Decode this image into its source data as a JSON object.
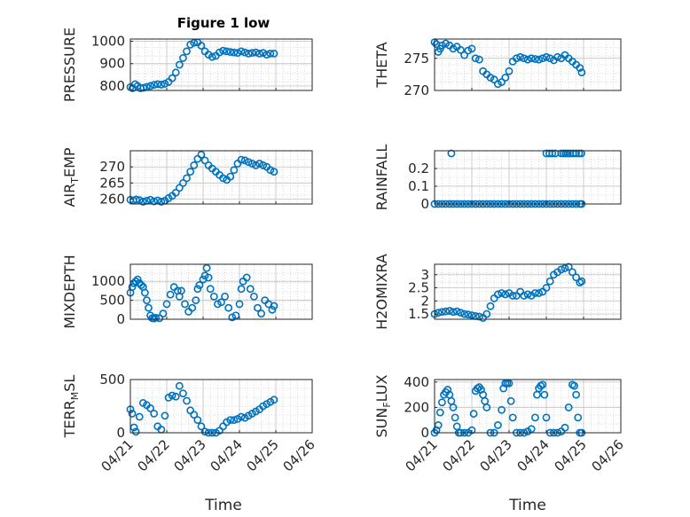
{
  "figure": {
    "title": "Figure 1 low",
    "marker_color": "#0072BD"
  },
  "chart_data": [
    {
      "type": "scatter",
      "name": "pressure",
      "ylabel": "PRESSURE",
      "xlim": [
        0,
        5
      ],
      "ylim": [
        780,
        1010
      ],
      "yticks": [
        800,
        900,
        1000
      ],
      "xticks": [
        "04/21",
        "04/22",
        "04/23",
        "04/24",
        "04/25",
        "04/26"
      ],
      "grid": true,
      "x": [
        0.0,
        0.06,
        0.13,
        0.2,
        0.28,
        0.36,
        0.45,
        0.55,
        0.65,
        0.75,
        0.85,
        0.95,
        1.05,
        1.15,
        1.25,
        1.35,
        1.45,
        1.55,
        1.65,
        1.75,
        1.85,
        1.95,
        2.05,
        2.15,
        2.25,
        2.35,
        2.45,
        2.55,
        2.65,
        2.75,
        2.85,
        2.95,
        3.05,
        3.15,
        3.25,
        3.35,
        3.45,
        3.55,
        3.65,
        3.75,
        3.85,
        3.95
      ],
      "y": [
        795,
        790,
        808,
        800,
        790,
        792,
        796,
        800,
        805,
        808,
        806,
        810,
        818,
        835,
        860,
        895,
        925,
        955,
        985,
        993,
        995,
        980,
        955,
        940,
        930,
        935,
        950,
        958,
        955,
        952,
        950,
        948,
        955,
        950,
        945,
        948,
        950,
        945,
        948,
        940,
        945,
        945
      ]
    },
    {
      "type": "scatter",
      "name": "theta",
      "ylabel": "THETA",
      "xlim": [
        0,
        5
      ],
      "ylim": [
        270,
        278
      ],
      "yticks": [
        270,
        275
      ],
      "xticks": [
        "04/21",
        "04/22",
        "04/23",
        "04/24",
        "04/25",
        "04/26"
      ],
      "grid": true,
      "x": [
        0.0,
        0.05,
        0.1,
        0.15,
        0.2,
        0.3,
        0.4,
        0.5,
        0.6,
        0.7,
        0.8,
        0.9,
        1.0,
        1.1,
        1.2,
        1.3,
        1.4,
        1.5,
        1.6,
        1.7,
        1.8,
        1.9,
        2.0,
        2.1,
        2.2,
        2.3,
        2.4,
        2.5,
        2.6,
        2.7,
        2.8,
        2.9,
        3.0,
        3.1,
        3.2,
        3.3,
        3.4,
        3.5,
        3.6,
        3.7,
        3.8,
        3.9,
        3.95
      ],
      "y": [
        277.5,
        277.2,
        276,
        276.5,
        277,
        277.3,
        277,
        276.5,
        276.8,
        276.3,
        275.5,
        276.2,
        276.5,
        275,
        274.8,
        273,
        272.5,
        272,
        271.7,
        271,
        271.3,
        272,
        273,
        274.5,
        275,
        275.2,
        275,
        274.8,
        275,
        274.9,
        274.8,
        275,
        275.2,
        275,
        274.7,
        275.2,
        275,
        275.5,
        275,
        274.5,
        274,
        273.5,
        272.8
      ]
    },
    {
      "type": "scatter",
      "name": "air_temp",
      "ylabel": "AIR_TEMP",
      "xlim": [
        0,
        5
      ],
      "ylim": [
        258.5,
        275
      ],
      "yticks": [
        260,
        265,
        270
      ],
      "xticks": [
        "04/21",
        "04/22",
        "04/23",
        "04/24",
        "04/25",
        "04/26"
      ],
      "grid": true,
      "x": [
        0.0,
        0.08,
        0.16,
        0.25,
        0.35,
        0.45,
        0.55,
        0.65,
        0.75,
        0.85,
        0.95,
        1.05,
        1.15,
        1.25,
        1.35,
        1.45,
        1.55,
        1.65,
        1.75,
        1.85,
        1.95,
        2.05,
        2.15,
        2.25,
        2.35,
        2.45,
        2.55,
        2.65,
        2.75,
        2.85,
        2.95,
        3.05,
        3.15,
        3.25,
        3.35,
        3.45,
        3.55,
        3.65,
        3.75,
        3.85,
        3.95
      ],
      "y": [
        259.8,
        259.6,
        259.9,
        259.7,
        259.2,
        259.5,
        259.8,
        259.3,
        259.6,
        259.2,
        259.5,
        260.3,
        261,
        262,
        263.5,
        265,
        266.5,
        268.5,
        270.5,
        272.5,
        273.8,
        272,
        270.5,
        269.5,
        268.5,
        267.5,
        266.5,
        266,
        267,
        269,
        271,
        272.2,
        272,
        271.5,
        271,
        270.5,
        271,
        270.5,
        270,
        269,
        268.5
      ]
    },
    {
      "type": "scatter",
      "name": "rainfall",
      "ylabel": "RAINFALL",
      "xlim": [
        0,
        5
      ],
      "ylim": [
        0,
        0.3
      ],
      "yticks": [
        0,
        0.1,
        0.2
      ],
      "xticks": [
        "04/21",
        "04/22",
        "04/23",
        "04/24",
        "04/25",
        "04/26"
      ],
      "grid": true,
      "x": [
        0.0,
        0.1,
        0.2,
        0.3,
        0.4,
        0.5,
        0.6,
        0.7,
        0.8,
        0.9,
        1.0,
        1.1,
        1.2,
        1.3,
        1.4,
        1.5,
        1.6,
        1.7,
        1.8,
        1.9,
        2.0,
        2.1,
        2.2,
        2.3,
        2.4,
        2.5,
        2.6,
        2.7,
        2.8,
        2.9,
        3.0,
        3.1,
        3.2,
        3.3,
        3.4,
        3.5,
        3.6,
        3.7,
        3.8,
        3.9,
        3.95,
        0.45,
        3.0,
        3.08,
        3.16,
        3.24,
        3.4,
        3.46,
        3.52,
        3.58,
        3.64,
        3.72,
        3.8,
        3.88,
        3.94
      ],
      "y": [
        0,
        0,
        0,
        0,
        0,
        0,
        0,
        0,
        0,
        0,
        0,
        0,
        0,
        0,
        0,
        0,
        0,
        0,
        0,
        0,
        0,
        0,
        0,
        0,
        0,
        0,
        0,
        0,
        0,
        0,
        0,
        0,
        0,
        0,
        0,
        0,
        0,
        0,
        0,
        0,
        0,
        0.285,
        0.285,
        0.285,
        0.285,
        0.285,
        0.285,
        0.285,
        0.285,
        0.285,
        0.285,
        0.285,
        0.285,
        0.285,
        0.285
      ]
    },
    {
      "type": "scatter",
      "name": "mixdepth",
      "ylabel": "MIXDEPTH",
      "xlim": [
        0,
        5
      ],
      "ylim": [
        0,
        1450
      ],
      "yticks": [
        0,
        500,
        1000
      ],
      "xticks": [
        "04/21",
        "04/22",
        "04/23",
        "04/24",
        "04/25",
        "04/26"
      ],
      "grid": true,
      "x": [
        0.0,
        0.05,
        0.1,
        0.15,
        0.2,
        0.25,
        0.3,
        0.35,
        0.4,
        0.45,
        0.5,
        0.55,
        0.6,
        0.65,
        0.7,
        0.8,
        0.9,
        1.0,
        1.1,
        1.2,
        1.3,
        1.35,
        1.4,
        1.5,
        1.6,
        1.7,
        1.8,
        1.85,
        1.9,
        2.0,
        2.05,
        2.1,
        2.15,
        2.2,
        2.3,
        2.4,
        2.5,
        2.6,
        2.7,
        2.8,
        2.9,
        3.0,
        3.05,
        3.1,
        3.2,
        3.3,
        3.4,
        3.5,
        3.6,
        3.7,
        3.8,
        3.9,
        3.95
      ],
      "y": [
        700,
        850,
        950,
        1000,
        1050,
        950,
        900,
        850,
        700,
        500,
        300,
        100,
        30,
        20,
        40,
        30,
        150,
        400,
        650,
        850,
        750,
        600,
        750,
        400,
        200,
        300,
        500,
        800,
        900,
        1050,
        1150,
        1350,
        1100,
        800,
        600,
        400,
        450,
        600,
        300,
        50,
        100,
        400,
        800,
        1000,
        1100,
        800,
        600,
        300,
        150,
        500,
        400,
        250,
        350
      ]
    },
    {
      "type": "scatter",
      "name": "h2omixra",
      "ylabel": "H2OMIXRA",
      "xlim": [
        0,
        5
      ],
      "ylim": [
        1.3,
        3.4
      ],
      "yticks": [
        1.5,
        2,
        2.5,
        3
      ],
      "xticks": [
        "04/21",
        "04/22",
        "04/23",
        "04/24",
        "04/25",
        "04/26"
      ],
      "grid": true,
      "x": [
        0.0,
        0.1,
        0.2,
        0.3,
        0.4,
        0.5,
        0.6,
        0.7,
        0.8,
        0.9,
        1.0,
        1.1,
        1.2,
        1.3,
        1.4,
        1.5,
        1.6,
        1.7,
        1.8,
        1.9,
        2.0,
        2.1,
        2.2,
        2.3,
        2.4,
        2.5,
        2.6,
        2.7,
        2.8,
        2.9,
        3.0,
        3.1,
        3.2,
        3.3,
        3.4,
        3.5,
        3.6,
        3.7,
        3.8,
        3.9,
        3.95
      ],
      "y": [
        1.5,
        1.55,
        1.58,
        1.6,
        1.62,
        1.58,
        1.6,
        1.55,
        1.5,
        1.48,
        1.45,
        1.42,
        1.4,
        1.35,
        1.5,
        1.8,
        2.1,
        2.25,
        2.3,
        2.25,
        2.3,
        2.2,
        2.2,
        2.35,
        2.2,
        2.25,
        2.2,
        2.3,
        2.3,
        2.35,
        2.5,
        2.75,
        3.0,
        3.1,
        3.2,
        3.25,
        3.3,
        3.1,
        2.9,
        2.7,
        2.75
      ]
    },
    {
      "type": "scatter",
      "name": "terr_msl",
      "ylabel": "TERR_MSL",
      "xlim": [
        0,
        5
      ],
      "ylim": [
        0,
        500
      ],
      "yticks": [
        0,
        500
      ],
      "xticks": [
        "04/21",
        "04/22",
        "04/23",
        "04/24",
        "04/25",
        "04/26"
      ],
      "grid": true,
      "x": [
        0.0,
        0.05,
        0.1,
        0.15,
        0.25,
        0.35,
        0.45,
        0.55,
        0.65,
        0.75,
        0.85,
        0.95,
        1.05,
        1.15,
        1.25,
        1.35,
        1.45,
        1.55,
        1.65,
        1.75,
        1.85,
        1.95,
        2.05,
        2.15,
        2.25,
        2.35,
        2.45,
        2.55,
        2.65,
        2.75,
        2.85,
        2.95,
        3.05,
        3.15,
        3.25,
        3.35,
        3.45,
        3.55,
        3.65,
        3.75,
        3.85,
        3.95
      ],
      "y": [
        220,
        180,
        50,
        10,
        150,
        280,
        260,
        230,
        180,
        60,
        30,
        160,
        330,
        350,
        340,
        440,
        370,
        300,
        210,
        170,
        120,
        60,
        10,
        0,
        0,
        0,
        20,
        60,
        100,
        120,
        120,
        130,
        150,
        140,
        160,
        180,
        200,
        220,
        250,
        270,
        290,
        310
      ]
    },
    {
      "type": "scatter",
      "name": "sun_flux",
      "ylabel": "SUN_FLUX",
      "xlim": [
        0,
        5
      ],
      "ylim": [
        0,
        420
      ],
      "yticks": [
        0,
        200,
        400
      ],
      "xticks": [
        "04/21",
        "04/22",
        "04/23",
        "04/24",
        "04/25",
        "04/26"
      ],
      "grid": true,
      "x": [
        0.0,
        0.05,
        0.1,
        0.15,
        0.2,
        0.25,
        0.3,
        0.35,
        0.4,
        0.45,
        0.5,
        0.55,
        0.6,
        0.65,
        0.7,
        0.8,
        0.9,
        1.0,
        1.05,
        1.1,
        1.15,
        1.2,
        1.25,
        1.3,
        1.35,
        1.4,
        1.5,
        1.6,
        1.7,
        1.8,
        1.85,
        1.9,
        1.95,
        2.0,
        2.05,
        2.1,
        2.2,
        2.3,
        2.4,
        2.5,
        2.6,
        2.7,
        2.75,
        2.8,
        2.85,
        2.9,
        2.95,
        3.0,
        3.1,
        3.2,
        3.3,
        3.4,
        3.5,
        3.6,
        3.7,
        3.75,
        3.8,
        3.85,
        3.9,
        3.95
      ],
      "y": [
        0,
        20,
        60,
        160,
        240,
        300,
        320,
        340,
        300,
        250,
        200,
        120,
        50,
        0,
        0,
        0,
        0,
        20,
        150,
        330,
        350,
        360,
        340,
        300,
        250,
        200,
        0,
        0,
        60,
        180,
        350,
        390,
        390,
        390,
        250,
        120,
        0,
        0,
        0,
        10,
        30,
        120,
        300,
        350,
        370,
        380,
        300,
        120,
        0,
        0,
        0,
        10,
        40,
        200,
        380,
        370,
        300,
        120,
        0,
        0
      ]
    }
  ]
}
